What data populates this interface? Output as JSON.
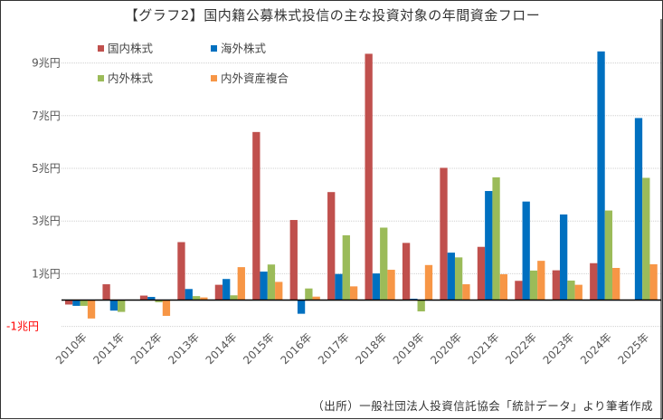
{
  "chart_data": {
    "type": "bar",
    "title": "【グラフ2】国内籍公募株式投信の主な投資対象の年間資金フロー",
    "xlabel": "",
    "ylabel": "",
    "ylim": [
      -1.5,
      9.7
    ],
    "grid": true,
    "legend_position": "top-left",
    "yticks": [
      {
        "value": 9,
        "label": "9兆円",
        "negative": false
      },
      {
        "value": 7,
        "label": "7兆円",
        "negative": false
      },
      {
        "value": 5,
        "label": "5兆円",
        "negative": false
      },
      {
        "value": 3,
        "label": "3兆円",
        "negative": false
      },
      {
        "value": 1,
        "label": "1兆円",
        "negative": false
      },
      {
        "value": -1,
        "label": "-1兆円",
        "negative": true
      }
    ],
    "categories": [
      "2010年",
      "2011年",
      "2012年",
      "2013年",
      "2014年",
      "2015年",
      "2016年",
      "2017年",
      "2018年",
      "2019年",
      "2020年",
      "2021年",
      "2022年",
      "2023年",
      "2024年",
      "2025年"
    ],
    "series": [
      {
        "name": "国内株式",
        "color": "#C0504D",
        "values": [
          -0.17,
          0.6,
          0.17,
          2.2,
          0.58,
          6.38,
          3.04,
          4.1,
          9.35,
          2.17,
          5.02,
          2.02,
          0.73,
          1.13,
          1.4,
          0.0
        ]
      },
      {
        "name": "海外株式",
        "color": "#0070C0",
        "values": [
          -0.22,
          -0.4,
          0.12,
          0.42,
          0.8,
          1.08,
          -0.52,
          0.99,
          1.01,
          0.05,
          1.8,
          4.14,
          3.74,
          3.25,
          9.44,
          6.91
        ]
      },
      {
        "name": "内外株式",
        "color": "#9BBB59",
        "values": [
          -0.22,
          -0.45,
          -0.08,
          0.15,
          0.18,
          1.35,
          0.44,
          2.46,
          2.75,
          -0.43,
          1.62,
          4.66,
          1.12,
          0.74,
          3.4,
          4.64
        ]
      },
      {
        "name": "内外資産複合",
        "color": "#F79646",
        "values": [
          -0.7,
          0.0,
          -0.6,
          0.1,
          1.25,
          0.69,
          0.13,
          0.52,
          1.15,
          1.33,
          0.6,
          0.98,
          1.49,
          0.58,
          1.22,
          1.36
        ]
      }
    ],
    "source": "（出所）一般社団法人投資信託協会「統計データ」より筆者作成",
    "unit": "兆円"
  }
}
